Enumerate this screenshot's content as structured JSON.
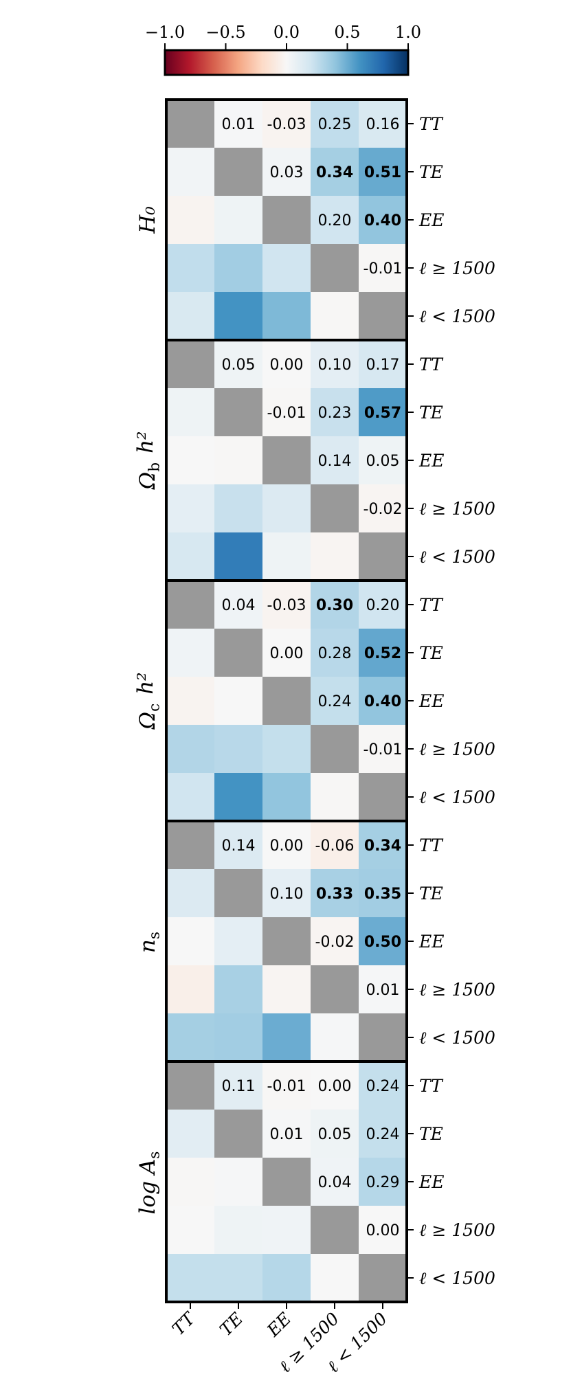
{
  "chart_data": {
    "type": "heatmap",
    "colorbar": {
      "range": [
        -1.0,
        1.0
      ],
      "ticks": [
        "−1.0",
        "−0.5",
        "0.0",
        "0.5",
        "1.0"
      ],
      "tick_values": [
        -1.0,
        -0.5,
        0.0,
        0.5,
        1.0
      ],
      "colormap": "RdBu",
      "colors": {
        "neg": "#67001f",
        "mid": "#f7f7f7",
        "pos": "#053061"
      }
    },
    "diagonal_color": "#999999",
    "row_tick_labels": [
      "TT",
      "TE",
      "EE",
      "ℓ ≥ 1500",
      "ℓ < 1500"
    ],
    "x_tick_labels": [
      "TT",
      "TE",
      "EE",
      "ℓ ≥ 1500",
      "ℓ < 1500"
    ],
    "bold_threshold": 0.3,
    "panels": [
      {
        "label": "H₀",
        "upper_labels": [
          [
            "",
            "0.01",
            "-0.03",
            "0.25",
            "0.16"
          ],
          [
            "",
            "",
            "0.03",
            "0.34",
            "0.51"
          ],
          [
            "",
            "",
            "",
            "0.20",
            "0.40"
          ],
          [
            "",
            "",
            "",
            "",
            "-0.01"
          ],
          [
            "",
            "",
            "",
            "",
            ""
          ]
        ],
        "values": [
          [
            null,
            0.01,
            -0.03,
            0.25,
            0.16
          ],
          [
            0.03,
            null,
            0.03,
            0.34,
            0.51
          ],
          [
            -0.03,
            0.05,
            null,
            0.2,
            0.4
          ],
          [
            0.25,
            0.35,
            0.2,
            null,
            -0.01
          ],
          [
            0.16,
            0.6,
            0.45,
            -0.01,
            null
          ]
        ]
      },
      {
        "label": "Ω_b h²",
        "upper_labels": [
          [
            "",
            "0.05",
            "0.00",
            "0.10",
            "0.17"
          ],
          [
            "",
            "",
            "-0.01",
            "0.23",
            "0.57"
          ],
          [
            "",
            "",
            "",
            "0.14",
            "0.05"
          ],
          [
            "",
            "",
            "",
            "",
            "-0.02"
          ],
          [
            "",
            "",
            "",
            "",
            ""
          ]
        ],
        "values": [
          [
            null,
            0.05,
            0.0,
            0.1,
            0.17
          ],
          [
            0.05,
            null,
            -0.01,
            0.23,
            0.57
          ],
          [
            0.0,
            -0.01,
            null,
            0.14,
            0.05
          ],
          [
            0.1,
            0.23,
            0.14,
            null,
            -0.02
          ],
          [
            0.17,
            0.7,
            0.05,
            -0.02,
            null
          ]
        ]
      },
      {
        "label": "Ω_c h²",
        "upper_labels": [
          [
            "",
            "0.04",
            "-0.03",
            "0.30",
            "0.20"
          ],
          [
            "",
            "",
            "0.00",
            "0.28",
            "0.52"
          ],
          [
            "",
            "",
            "",
            "0.24",
            "0.40"
          ],
          [
            "",
            "",
            "",
            "",
            "-0.01"
          ],
          [
            "",
            "",
            "",
            "",
            ""
          ]
        ],
        "values": [
          [
            null,
            0.04,
            -0.03,
            0.3,
            0.2
          ],
          [
            0.04,
            null,
            0.0,
            0.28,
            0.52
          ],
          [
            -0.03,
            0.0,
            null,
            0.24,
            0.4
          ],
          [
            0.3,
            0.28,
            0.24,
            null,
            -0.01
          ],
          [
            0.2,
            0.6,
            0.4,
            -0.01,
            null
          ]
        ]
      },
      {
        "label": "n_s",
        "upper_labels": [
          [
            "",
            "0.14",
            "0.00",
            "-0.06",
            "0.34"
          ],
          [
            "",
            "",
            "0.10",
            "0.33",
            "0.35"
          ],
          [
            "",
            "",
            "",
            "-0.02",
            "0.50"
          ],
          [
            "",
            "",
            "",
            "",
            "0.01"
          ],
          [
            "",
            "",
            "",
            "",
            ""
          ]
        ],
        "values": [
          [
            null,
            0.14,
            0.0,
            -0.06,
            0.34
          ],
          [
            0.14,
            null,
            0.1,
            0.33,
            0.35
          ],
          [
            0.0,
            0.1,
            null,
            -0.02,
            0.5
          ],
          [
            -0.06,
            0.33,
            -0.02,
            null,
            0.01
          ],
          [
            0.34,
            0.35,
            0.5,
            0.01,
            null
          ]
        ]
      },
      {
        "label": "log A_s",
        "upper_labels": [
          [
            "",
            "0.11",
            "-0.01",
            "0.00",
            "0.24"
          ],
          [
            "",
            "",
            "0.01",
            "0.05",
            "0.24"
          ],
          [
            "",
            "",
            "",
            "0.04",
            "0.29"
          ],
          [
            "",
            "",
            "",
            "",
            "0.00"
          ],
          [
            "",
            "",
            "",
            "",
            ""
          ]
        ],
        "values": [
          [
            null,
            0.11,
            -0.01,
            0.0,
            0.24
          ],
          [
            0.11,
            null,
            0.01,
            0.05,
            0.24
          ],
          [
            -0.01,
            0.01,
            null,
            0.04,
            0.29
          ],
          [
            0.0,
            0.05,
            0.04,
            null,
            0.0
          ],
          [
            0.24,
            0.24,
            0.29,
            0.0,
            null
          ]
        ]
      }
    ]
  }
}
